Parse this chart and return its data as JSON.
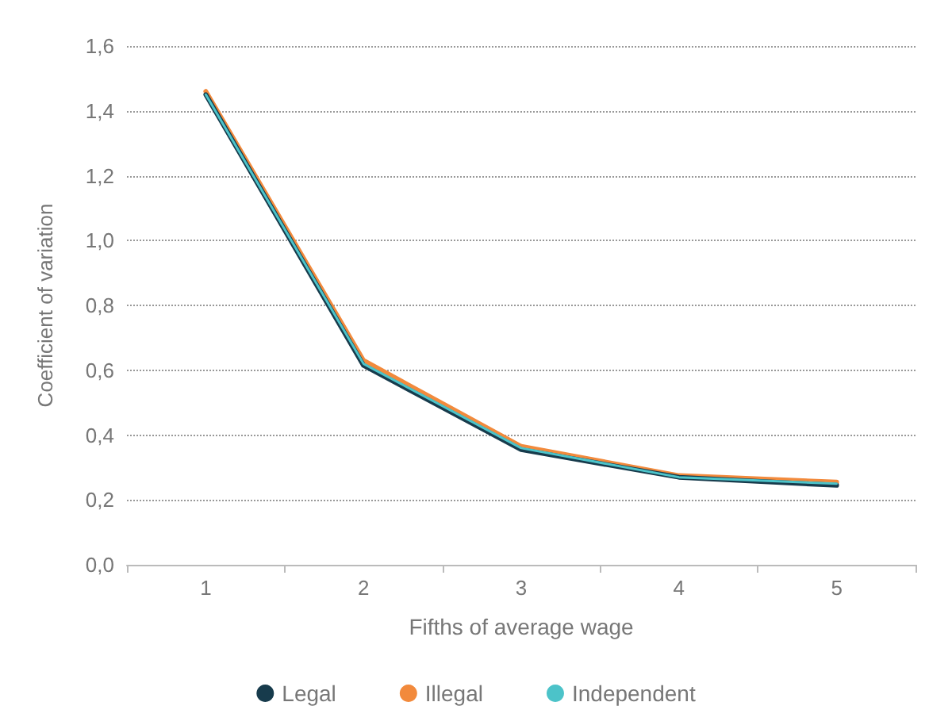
{
  "chart_data": {
    "type": "line",
    "xlabel": "Fifths of average wage",
    "ylabel": "Coefficient of variation",
    "categories": [
      "1",
      "2",
      "3",
      "4",
      "5"
    ],
    "series": [
      {
        "name": "Legal",
        "color": "#173b4c",
        "values": [
          1.45,
          0.615,
          0.355,
          0.27,
          0.245
        ]
      },
      {
        "name": "Illegal",
        "color": "#f28a3c",
        "values": [
          1.46,
          0.63,
          0.365,
          0.275,
          0.255
        ]
      },
      {
        "name": "Independent",
        "color": "#4cc3c9",
        "values": [
          1.45,
          0.62,
          0.36,
          0.27,
          0.25
        ]
      }
    ],
    "ylim": [
      0,
      1.6
    ],
    "yticks": [
      {
        "value": 0,
        "label": "0,0"
      },
      {
        "value": 0.2,
        "label": "0,2"
      },
      {
        "value": 0.4,
        "label": "0,4"
      },
      {
        "value": 0.6,
        "label": "0,6"
      },
      {
        "value": 0.8,
        "label": "0,8"
      },
      {
        "value": 1.0,
        "label": "1,0"
      },
      {
        "value": 1.2,
        "label": "1,2"
      },
      {
        "value": 1.4,
        "label": "1,4"
      },
      {
        "value": 1.6,
        "label": "1,6"
      }
    ],
    "grid": "y",
    "legend": "bottom",
    "marker": "none",
    "line_style": "solid"
  }
}
